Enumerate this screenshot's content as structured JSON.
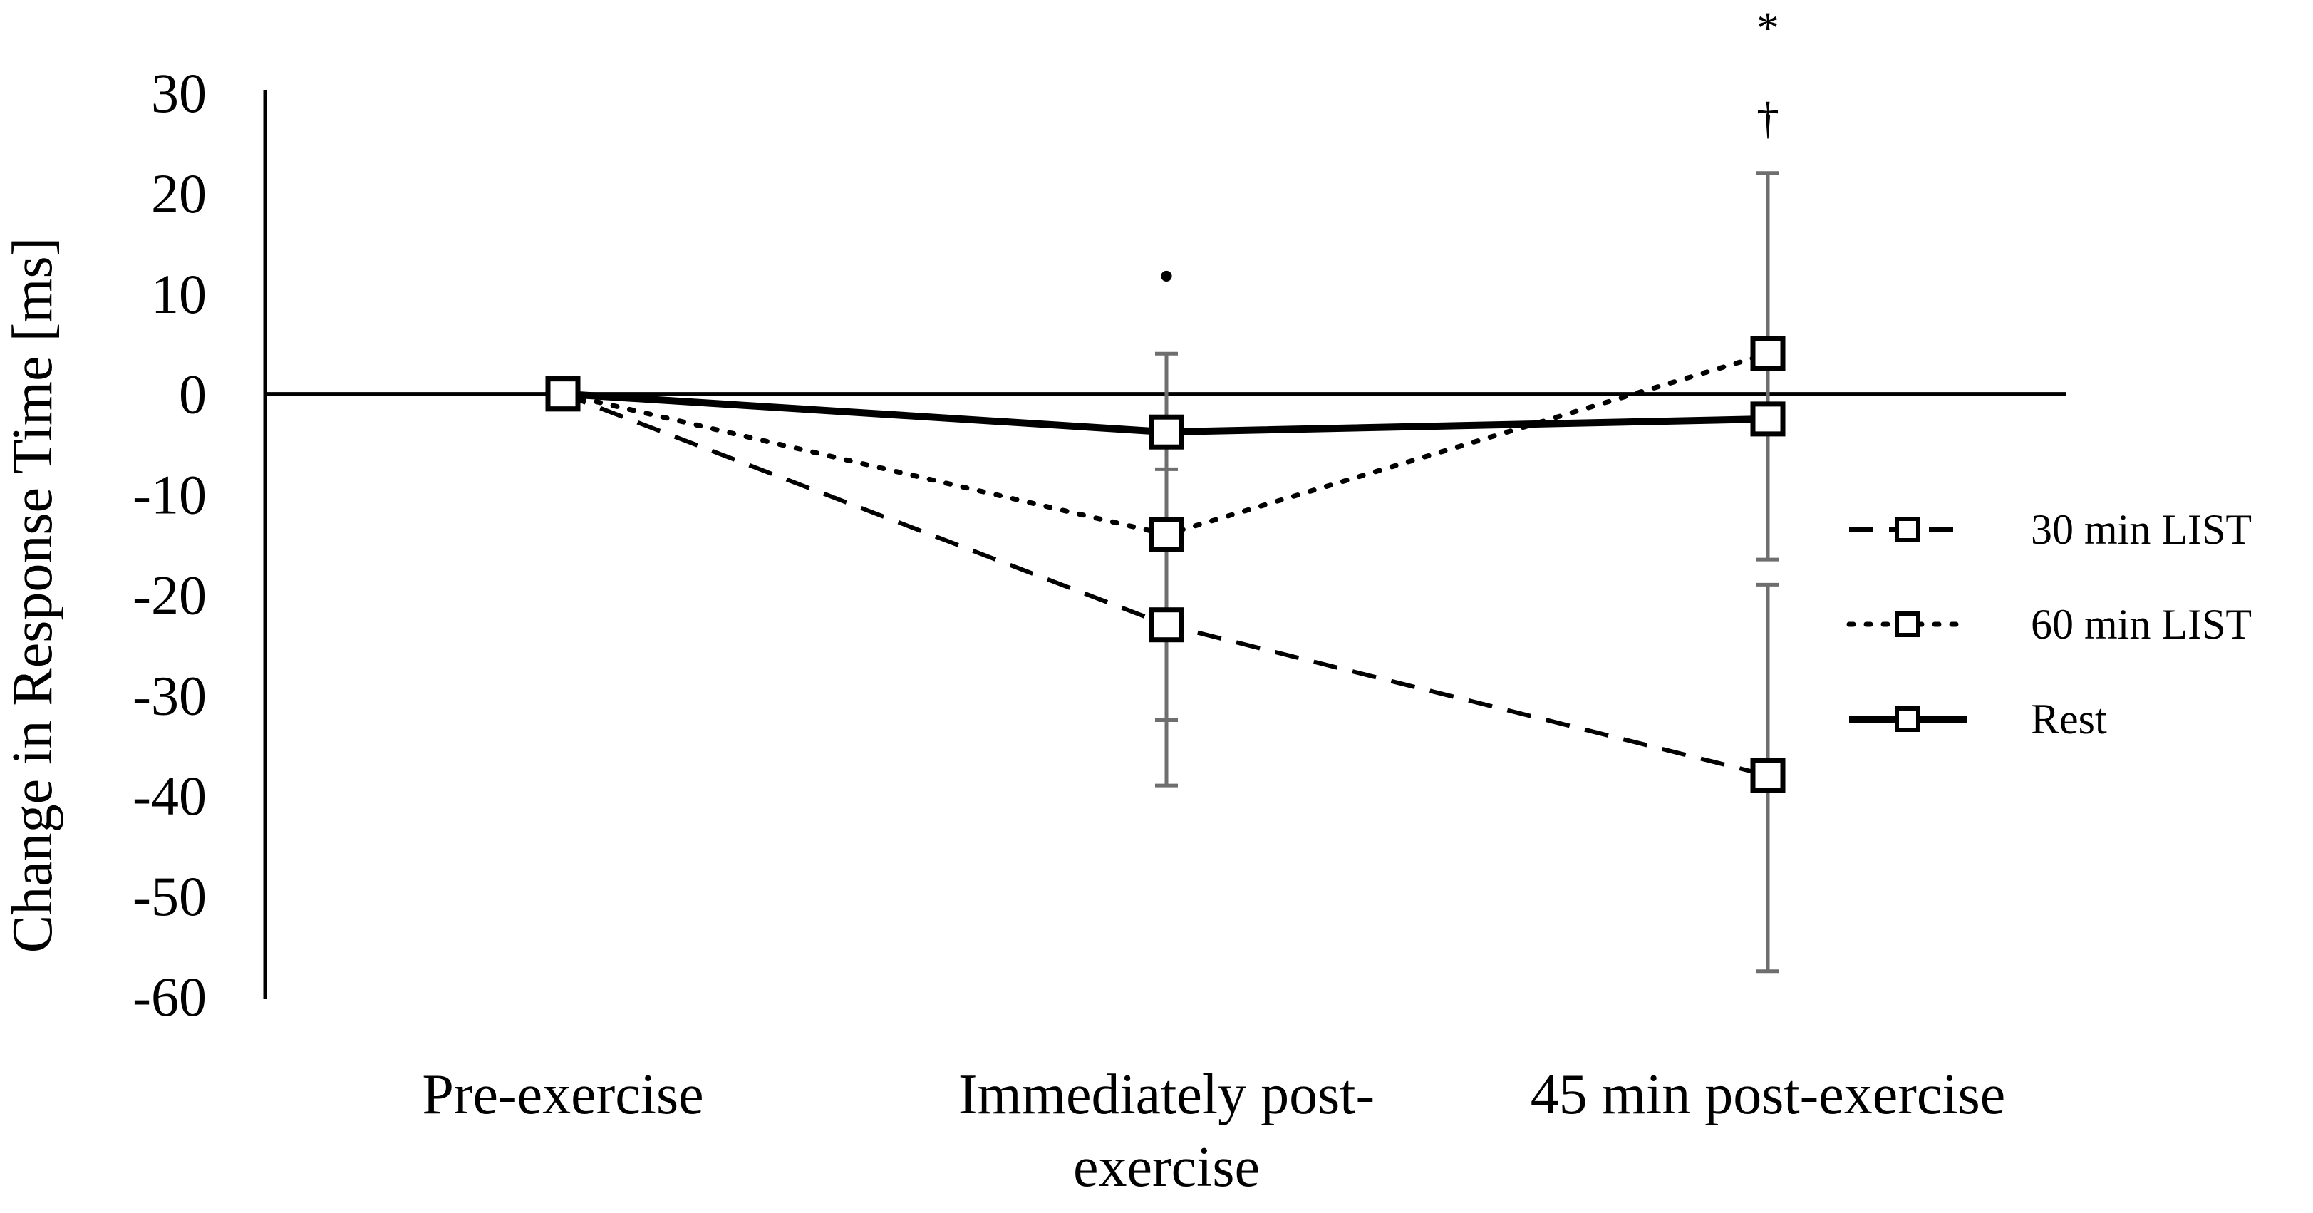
{
  "chart_data": {
    "type": "line",
    "title": "",
    "ylabel": "Change in Response Time [ms]",
    "xlabel": "",
    "categories": [
      "Pre-exercise",
      "Immediately post-exercise",
      "45 min post-exercise"
    ],
    "category_label_lines": [
      [
        "Pre-exercise"
      ],
      [
        "Immediately post-",
        "exercise"
      ],
      [
        "45 min post-exercise"
      ]
    ],
    "ylim": [
      -60,
      30
    ],
    "yticks": [
      30,
      20,
      10,
      0,
      -10,
      -20,
      -30,
      -40,
      -50,
      -60
    ],
    "ytick_labels": [
      "30",
      "20",
      "10",
      "0",
      "-10",
      "-20",
      "-30",
      "-40",
      "-50",
      "-60"
    ],
    "grid": false,
    "legend_position": "right",
    "marker": "open-square",
    "series": [
      {
        "name": "30 min LIST",
        "line_style": "dashed",
        "values": [
          0,
          -23,
          -38
        ],
        "error_bars": [
          null,
          {
            "low": -39,
            "high": 4
          },
          {
            "low": -57.5,
            "high": -19
          }
        ]
      },
      {
        "name": "60 min LIST",
        "line_style": "dotted",
        "values": [
          0,
          -14,
          4
        ],
        "error_bars": [
          null,
          {
            "low": -32.5,
            "high": -7.5
          },
          {
            "low": -16.5,
            "high": 22
          }
        ]
      },
      {
        "name": "Rest",
        "line_style": "solid",
        "values": [
          0,
          -3.8,
          -2.5
        ],
        "error_bars": [
          null,
          null,
          null
        ]
      }
    ],
    "annotations": [
      {
        "text": "•",
        "category": 1,
        "y": 11.8
      },
      {
        "text": "*",
        "category": 2,
        "y": 36.5
      },
      {
        "text": "†",
        "category": 2,
        "y": 27.5
      }
    ]
  },
  "colors": {
    "axis": "#000000",
    "series_line": "#000000",
    "error_bar": "#6e6e6e",
    "marker_fill": "#ffffff",
    "marker_stroke": "#000000"
  }
}
